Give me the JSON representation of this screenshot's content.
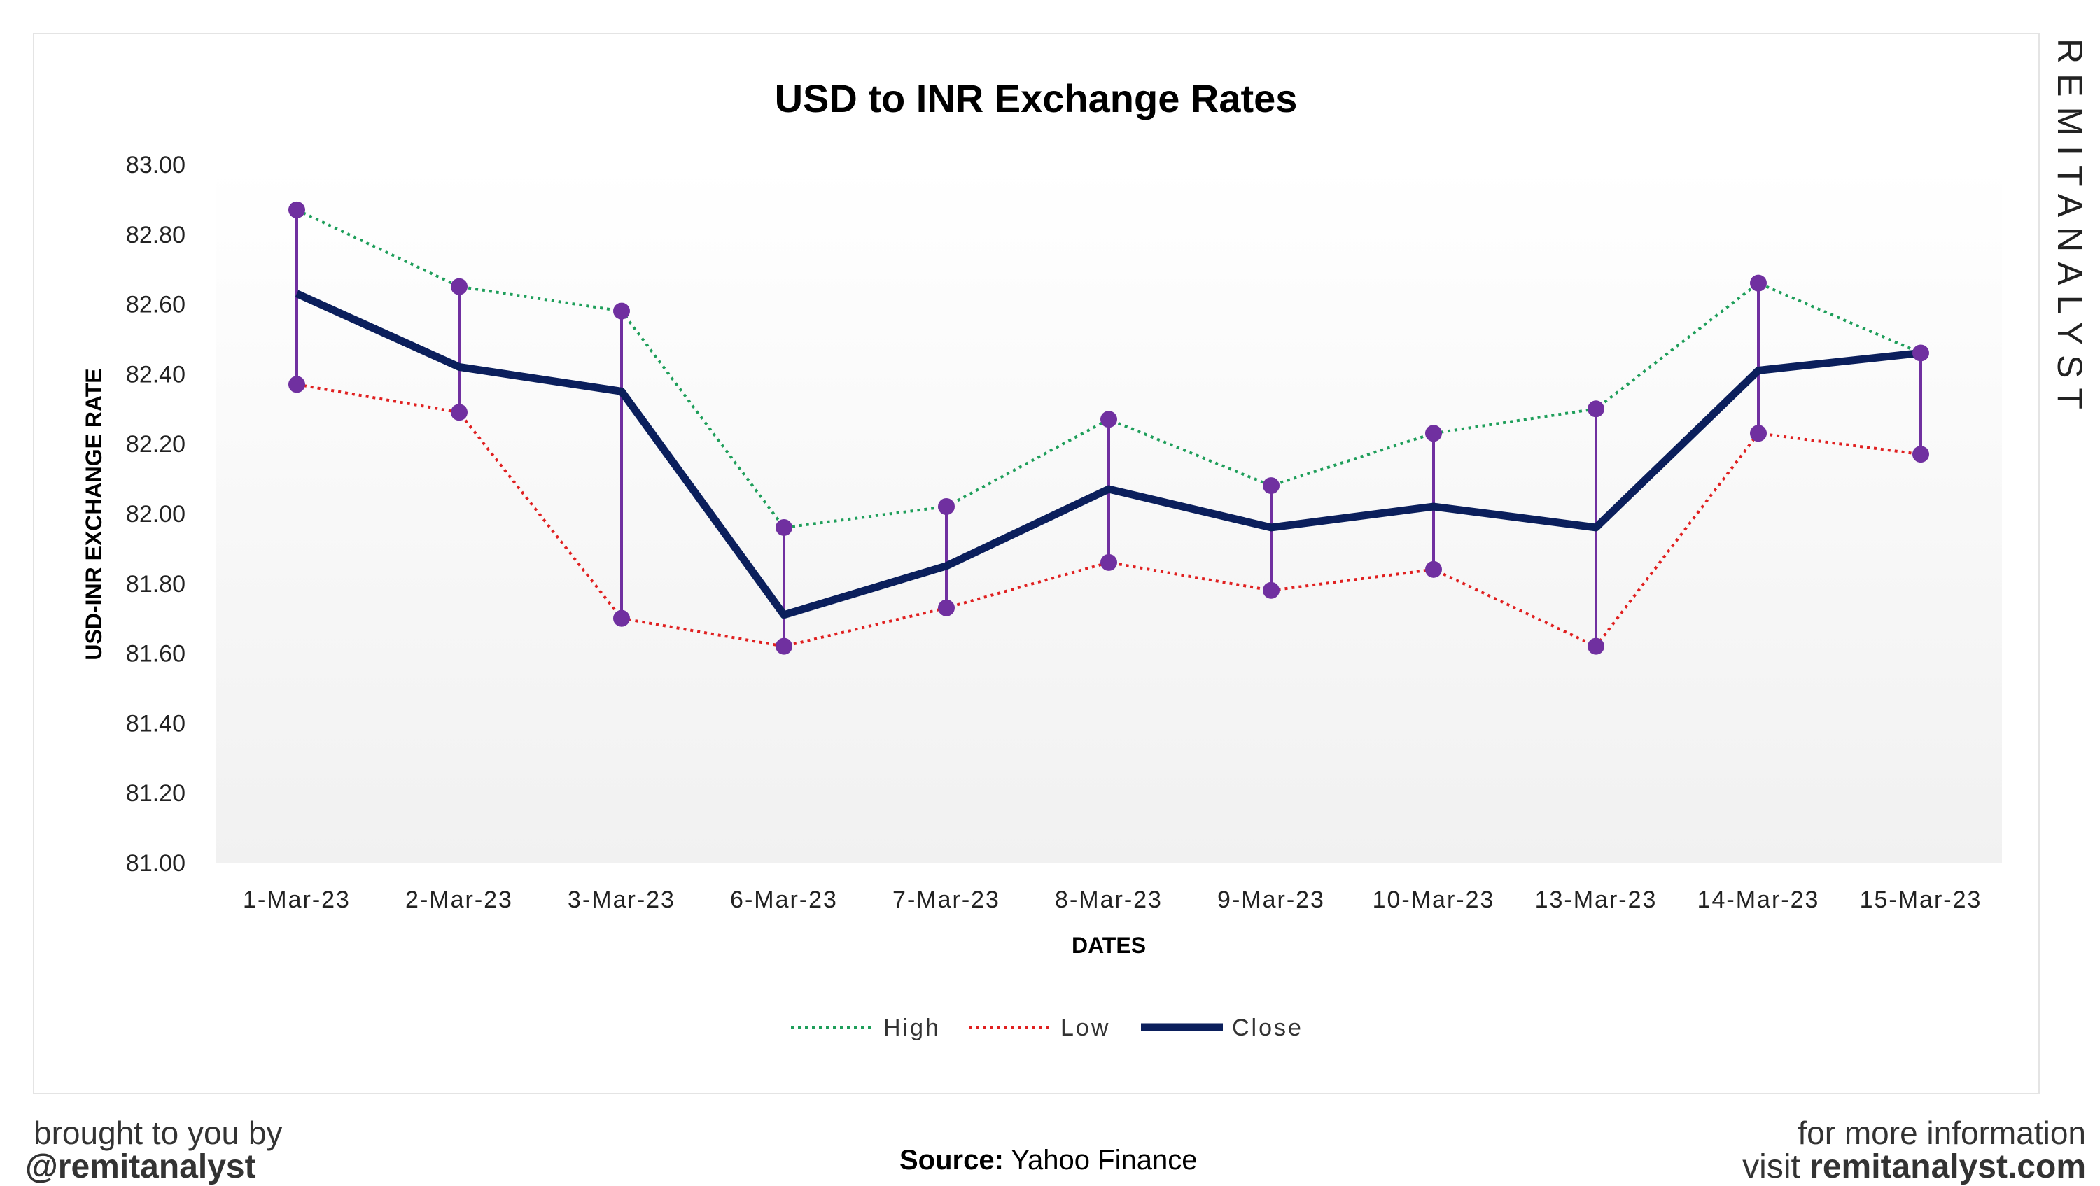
{
  "chart_data": {
    "type": "line",
    "title": "USD to INR Exchange Rates",
    "xlabel": "DATES",
    "ylabel": "USD-INR EXCHANGE RATE",
    "ylim": [
      81.0,
      83.0
    ],
    "yticks": [
      "81.00",
      "81.20",
      "81.40",
      "81.60",
      "81.80",
      "82.00",
      "82.20",
      "82.40",
      "82.60",
      "82.80",
      "83.00"
    ],
    "categories": [
      "1-Mar-23",
      "2-Mar-23",
      "3-Mar-23",
      "6-Mar-23",
      "7-Mar-23",
      "8-Mar-23",
      "9-Mar-23",
      "10-Mar-23",
      "13-Mar-23",
      "14-Mar-23",
      "15-Mar-23"
    ],
    "series": [
      {
        "name": "High",
        "color": "#1e9e5a",
        "style": "dotted",
        "values": [
          82.87,
          82.65,
          82.58,
          81.96,
          82.02,
          82.27,
          82.08,
          82.23,
          82.3,
          82.66,
          82.46
        ]
      },
      {
        "name": "Low",
        "color": "#e02020",
        "style": "dotted",
        "values": [
          82.37,
          82.29,
          81.7,
          81.62,
          81.73,
          81.86,
          81.78,
          81.84,
          81.62,
          82.23,
          82.17
        ]
      },
      {
        "name": "Close",
        "color": "#0b1f5c",
        "style": "solid",
        "values": [
          82.63,
          82.42,
          82.35,
          81.71,
          81.85,
          82.07,
          81.96,
          82.02,
          81.96,
          82.41,
          82.46
        ]
      }
    ],
    "high_low_line_color": "#7030a0",
    "grid": false,
    "legend_position": "bottom"
  },
  "branding": {
    "watermark": "REMITANALYST",
    "brought_by": "brought to you by",
    "handle": "@remitanalyst",
    "source_label": "Source:",
    "source_value": "Yahoo Finance",
    "more_info": "for more information",
    "visit": "visit",
    "site": "remitanalyst.com"
  }
}
